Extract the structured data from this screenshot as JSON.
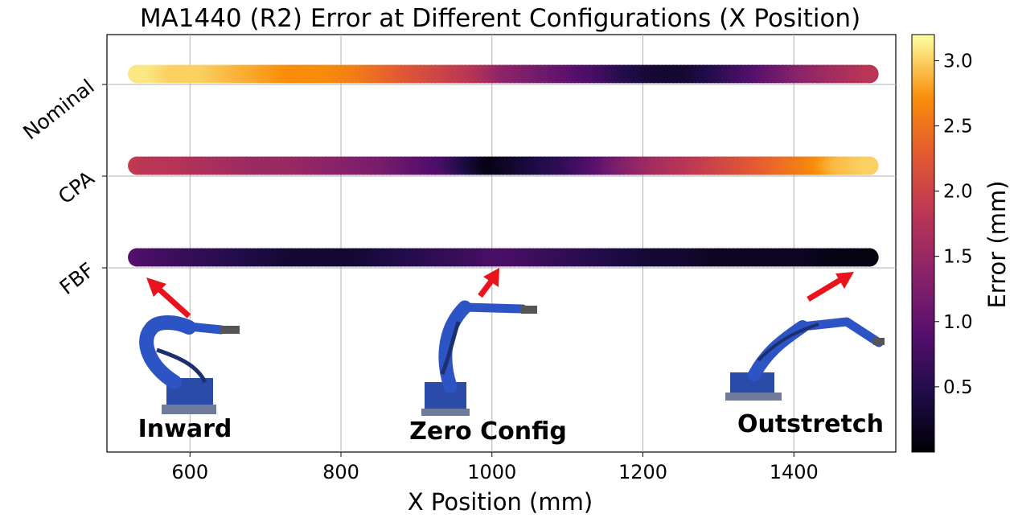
{
  "chart_data": {
    "type": "scatter",
    "title": "MA1440 (R2) Error at Different Configurations (X Position)",
    "xlabel": "X Position (mm)",
    "xlim": [
      490,
      1535
    ],
    "xticks": [
      600,
      800,
      1000,
      1200,
      1400
    ],
    "x_tick_labels": [
      "600",
      "800",
      "1000",
      "1200",
      "1400"
    ],
    "categories": [
      "Nominal",
      "CPA",
      "FBF"
    ],
    "x": [
      530,
      550,
      580,
      620,
      660,
      700,
      740,
      780,
      820,
      860,
      900,
      940,
      980,
      1000,
      1020,
      1060,
      1100,
      1140,
      1180,
      1220,
      1260,
      1300,
      1340,
      1380,
      1420,
      1460,
      1500
    ],
    "series": [
      {
        "name": "Nominal",
        "values": [
          3.1,
          3.1,
          3.0,
          3.0,
          2.9,
          2.8,
          2.7,
          2.7,
          2.6,
          2.4,
          2.2,
          2.0,
          1.8,
          1.6,
          1.4,
          1.2,
          1.0,
          0.8,
          0.5,
          0.3,
          0.3,
          0.5,
          0.8,
          1.1,
          1.4,
          1.6,
          1.8
        ]
      },
      {
        "name": "CPA",
        "values": [
          1.9,
          1.8,
          1.8,
          1.7,
          1.6,
          1.5,
          1.5,
          1.4,
          1.3,
          1.2,
          1.0,
          0.8,
          0.3,
          0.1,
          0.2,
          0.4,
          0.6,
          0.9,
          1.3,
          1.6,
          1.8,
          2.0,
          2.2,
          2.4,
          2.6,
          2.9,
          3.0
        ]
      },
      {
        "name": "FBF",
        "values": [
          0.9,
          0.8,
          0.7,
          0.6,
          0.5,
          0.4,
          0.3,
          0.3,
          0.3,
          0.4,
          0.5,
          0.6,
          0.7,
          0.8,
          0.8,
          0.7,
          0.6,
          0.5,
          0.4,
          0.3,
          0.3,
          0.2,
          0.2,
          0.2,
          0.2,
          0.1,
          0.1
        ]
      }
    ],
    "colorbar": {
      "label": "Error (mm)",
      "colormap": "inferno",
      "range": [
        0.0,
        3.2
      ],
      "ticks": [
        0.5,
        1.0,
        1.5,
        2.0,
        2.5,
        3.0
      ],
      "tick_labels": [
        "0.5",
        "1.0",
        "1.5",
        "2.0",
        "2.5",
        "3.0"
      ]
    },
    "grid": true,
    "annotations": [
      "Inward",
      "Zero Config",
      "Outstretch"
    ]
  }
}
